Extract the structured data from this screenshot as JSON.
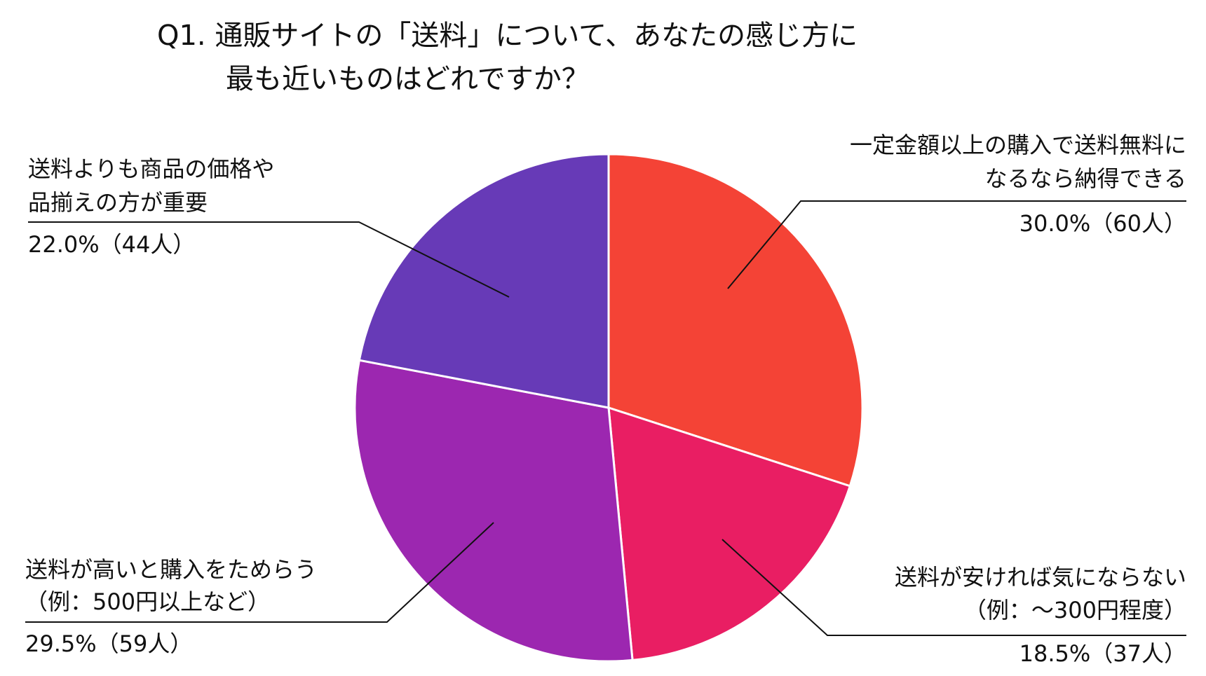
{
  "chart_data": {
    "type": "pie",
    "title": [
      "Q1. 通販サイトの「送料」について、あなたの感じ方に",
      "最も近いものはどれですか？"
    ],
    "start_angle_deg": 0,
    "direction": "clockwise",
    "slices": [
      {
        "id": "free-above-threshold",
        "label_lines": [
          "一定金額以上の購入で送料無料に",
          "なるなら納得できる"
        ],
        "value": 30.0,
        "count": 60,
        "value_label": "30.0%（60人）",
        "color": "#F44336"
      },
      {
        "id": "cheap-shipping-ok",
        "label_lines": [
          "送料が安ければ気にならない",
          "（例：～300円程度）"
        ],
        "value": 18.5,
        "count": 37,
        "value_label": "18.5%（37人）",
        "color": "#E91E63"
      },
      {
        "id": "hesitate-if-expensive",
        "label_lines": [
          "送料が高いと購入をためらう",
          "（例：500円以上など）"
        ],
        "value": 29.5,
        "count": 59,
        "value_label": "29.5%（59人）",
        "color": "#9C27B0"
      },
      {
        "id": "price-selection-more-important",
        "label_lines": [
          "送料よりも商品の価格や",
          "品揃えの方が重要"
        ],
        "value": 22.0,
        "count": 44,
        "value_label": "22.0%（44人）",
        "color": "#673AB7"
      }
    ]
  }
}
